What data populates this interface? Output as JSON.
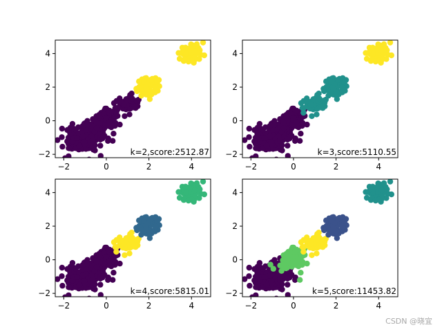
{
  "chart_data": [
    {
      "type": "scatter",
      "annotation": "k=2,score:2512.87",
      "xlim": [
        -2.4,
        4.9
      ],
      "ylim": [
        -2.2,
        4.8
      ],
      "xticks": [
        -2,
        0,
        2,
        4
      ],
      "yticks": [
        -2,
        0,
        2,
        4
      ],
      "xtick_labels": [
        "−2",
        "0",
        "2",
        "4"
      ],
      "ytick_labels": [
        "−2",
        "0",
        "2",
        "4"
      ],
      "clusters": [
        {
          "center": [
            -1.0,
            -1.0
          ],
          "spread": 0.38,
          "count": 260,
          "color": "#440154"
        },
        {
          "center": [
            0.0,
            0.0
          ],
          "spread": 0.25,
          "count": 120,
          "color": "#440154"
        },
        {
          "center": [
            1.0,
            1.0
          ],
          "spread": 0.22,
          "count": 90,
          "color": "#440154"
        },
        {
          "center": [
            2.0,
            2.0
          ],
          "spread": 0.22,
          "count": 90,
          "color": "#fde725"
        },
        {
          "center": [
            4.0,
            4.0
          ],
          "spread": 0.22,
          "count": 90,
          "color": "#fde725"
        }
      ],
      "extra_points": [
        {
          "x": 0.3,
          "y": -1.2,
          "color": "#440154"
        }
      ]
    },
    {
      "type": "scatter",
      "annotation": "k=3,score:5110.55",
      "xlim": [
        -2.4,
        4.9
      ],
      "ylim": [
        -2.2,
        4.8
      ],
      "xticks": [
        -2,
        0,
        2,
        4
      ],
      "yticks": [
        -2,
        0,
        2,
        4
      ],
      "xtick_labels": [
        "−2",
        "0",
        "2",
        "4"
      ],
      "ytick_labels": [
        "−2",
        "0",
        "2",
        "4"
      ],
      "clusters": [
        {
          "center": [
            -1.0,
            -1.0
          ],
          "spread": 0.38,
          "count": 260,
          "color": "#440154"
        },
        {
          "center": [
            0.0,
            0.0
          ],
          "spread": 0.25,
          "count": 120,
          "color": "#440154"
        },
        {
          "center": [
            1.0,
            1.0
          ],
          "spread": 0.22,
          "count": 90,
          "color": "#21918c"
        },
        {
          "center": [
            2.0,
            2.0
          ],
          "spread": 0.22,
          "count": 90,
          "color": "#21918c"
        },
        {
          "center": [
            4.0,
            4.0
          ],
          "spread": 0.22,
          "count": 90,
          "color": "#fde725"
        }
      ],
      "extra_points": [
        {
          "x": 0.3,
          "y": -1.2,
          "color": "#440154"
        }
      ]
    },
    {
      "type": "scatter",
      "annotation": "k=4,score:5815.01",
      "xlim": [
        -2.4,
        4.9
      ],
      "ylim": [
        -2.2,
        4.8
      ],
      "xticks": [
        -2,
        0,
        2,
        4
      ],
      "yticks": [
        -2,
        0,
        2,
        4
      ],
      "xtick_labels": [
        "−2",
        "0",
        "2",
        "4"
      ],
      "ytick_labels": [
        "−2",
        "0",
        "2",
        "4"
      ],
      "clusters": [
        {
          "center": [
            -1.0,
            -1.0
          ],
          "spread": 0.38,
          "count": 260,
          "color": "#440154"
        },
        {
          "center": [
            0.0,
            0.0
          ],
          "spread": 0.25,
          "count": 120,
          "color": "#440154"
        },
        {
          "center": [
            1.0,
            1.0
          ],
          "spread": 0.22,
          "count": 90,
          "color": "#fde725"
        },
        {
          "center": [
            2.0,
            2.0
          ],
          "spread": 0.22,
          "count": 90,
          "color": "#31688e"
        },
        {
          "center": [
            4.0,
            4.0
          ],
          "spread": 0.22,
          "count": 90,
          "color": "#35b779"
        }
      ],
      "extra_points": [
        {
          "x": 0.3,
          "y": -1.2,
          "color": "#440154"
        }
      ]
    },
    {
      "type": "scatter",
      "annotation": "k=5,score:11453.82",
      "xlim": [
        -2.4,
        4.9
      ],
      "ylim": [
        -2.2,
        4.8
      ],
      "xticks": [
        -2,
        0,
        2,
        4
      ],
      "yticks": [
        -2,
        0,
        2,
        4
      ],
      "xtick_labels": [
        "−2",
        "0",
        "2",
        "4"
      ],
      "ytick_labels": [
        "−2",
        "0",
        "2",
        "4"
      ],
      "clusters": [
        {
          "center": [
            -1.0,
            -1.0
          ],
          "spread": 0.38,
          "count": 260,
          "color": "#440154"
        },
        {
          "center": [
            0.0,
            0.0
          ],
          "spread": 0.25,
          "count": 120,
          "color": "#5ec962"
        },
        {
          "center": [
            1.0,
            1.0
          ],
          "spread": 0.22,
          "count": 90,
          "color": "#fde725"
        },
        {
          "center": [
            2.0,
            2.0
          ],
          "spread": 0.22,
          "count": 90,
          "color": "#3b528b"
        },
        {
          "center": [
            4.0,
            4.0
          ],
          "spread": 0.22,
          "count": 90,
          "color": "#21918c"
        }
      ],
      "extra_points": [
        {
          "x": 0.3,
          "y": -1.2,
          "color": "#5ec962"
        }
      ]
    }
  ],
  "watermark": "CSDN @晓宜"
}
